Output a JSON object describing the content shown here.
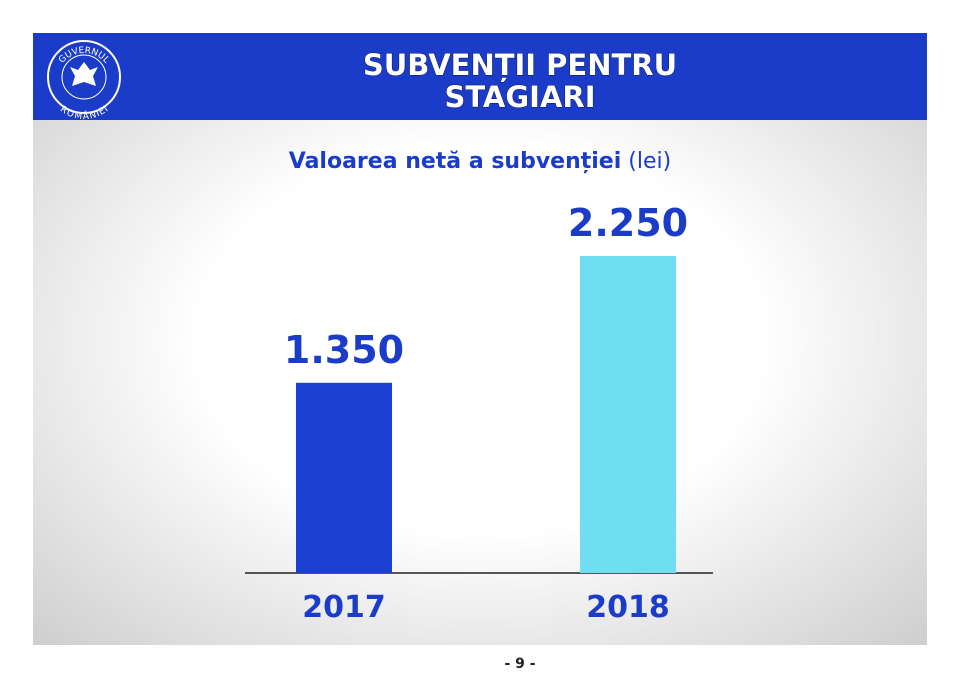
{
  "chart_data": {
    "type": "bar",
    "title": [
      "SUBVENȚII PENTRU",
      "STAGIARI"
    ],
    "subtitle": "Valoarea netă a subvenției",
    "unit": "(lei)",
    "categories": [
      "2017",
      "2018"
    ],
    "values": [
      1350,
      2250
    ],
    "value_labels": [
      "1.350",
      "2.250"
    ],
    "colors": [
      "#1b3fd0",
      "#6fdef0"
    ]
  },
  "logo": {
    "top": "GUVERNUL",
    "bottom": "ROMÂNIEI"
  },
  "page_number": "- 9 -"
}
